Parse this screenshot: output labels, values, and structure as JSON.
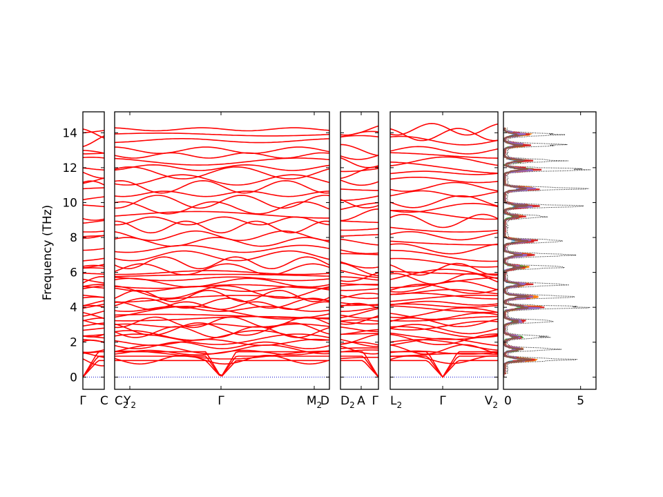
{
  "chart_data": {
    "type": "line",
    "title": "",
    "ylabel": "Frequency (THz)",
    "ylim": [
      -0.7,
      15.2
    ],
    "y_ticks": [
      0,
      2,
      4,
      6,
      8,
      10,
      12,
      14
    ],
    "colors": {
      "bands": "#ff0000",
      "zero_line": "#0000cc",
      "dos_total": "#000000"
    },
    "band_panels": [
      {
        "tick_labels": [
          "Γ",
          "C"
        ],
        "sublabels": [
          "",
          ""
        ]
      },
      {
        "tick_labels": [
          "C",
          "Y",
          "Γ",
          "M",
          "D"
        ],
        "sublabels": [
          "2",
          "2",
          "",
          "2",
          ""
        ]
      },
      {
        "tick_labels": [
          "D",
          "A",
          "Γ"
        ],
        "sublabels": [
          "2",
          "",
          ""
        ]
      },
      {
        "tick_labels": [
          "L",
          "Γ",
          "V"
        ],
        "sublabels": [
          "2",
          "",
          "2"
        ]
      }
    ],
    "dos_panel": {
      "xlim": [
        0,
        6
      ],
      "x_ticks": [
        0,
        5
      ],
      "series_colors": [
        "#1f77b4",
        "#ff7f0e",
        "#2ca02c",
        "#d62728",
        "#9467bd",
        "#8c564b"
      ],
      "total_style": "dotted"
    }
  }
}
